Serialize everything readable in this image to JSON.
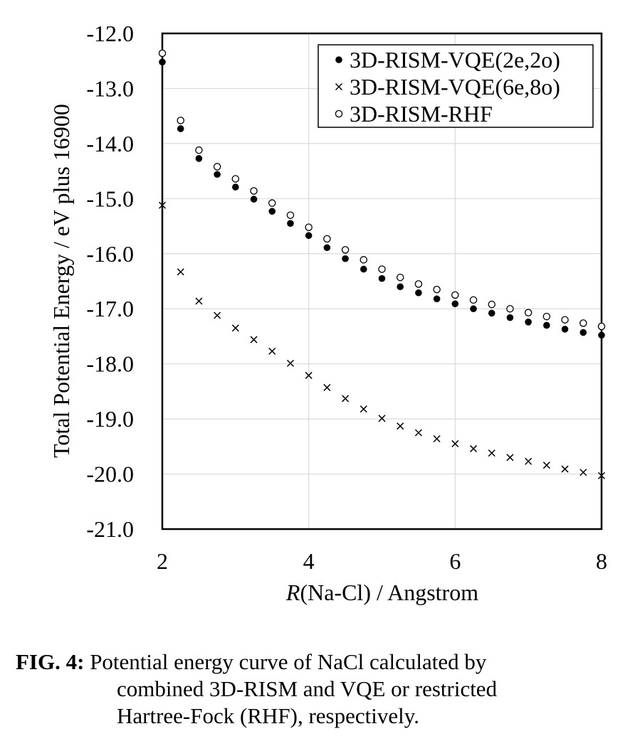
{
  "chart_data": {
    "type": "scatter",
    "xlabel_italic": "R",
    "xlabel_rest": "(Na-Cl) / Angstrom",
    "ylabel": "Total Potential Energy / eV plus 16900",
    "xlim": [
      2,
      8
    ],
    "ylim": [
      -21.0,
      -12.0
    ],
    "xticks": [
      2,
      4,
      6,
      8
    ],
    "xtick_labels": [
      "2",
      "4",
      "6",
      "8"
    ],
    "yticks": [
      -12.0,
      -13.0,
      -14.0,
      -15.0,
      -16.0,
      -17.0,
      -18.0,
      -19.0,
      -20.0,
      -21.0
    ],
    "ytick_labels": [
      "-12.0",
      "-13.0",
      "-14.0",
      "-15.0",
      "-16.0",
      "-17.0",
      "-18.0",
      "-19.0",
      "-20.0",
      "-21.0"
    ],
    "grid": true,
    "legend_position": "top-right",
    "x": [
      2.0,
      2.25,
      2.5,
      2.75,
      3.0,
      3.25,
      3.5,
      3.75,
      4.0,
      4.25,
      4.5,
      4.75,
      5.0,
      5.25,
      5.5,
      5.75,
      6.0,
      6.25,
      6.5,
      6.75,
      7.0,
      7.25,
      7.5,
      7.75,
      8.0
    ],
    "series": [
      {
        "name": "3D-RISM-VQE(2e,2o)",
        "marker": "filled-circle",
        "values": [
          -12.52,
          -13.73,
          -14.27,
          -14.56,
          -14.79,
          -15.01,
          -15.23,
          -15.45,
          -15.67,
          -15.89,
          -16.09,
          -16.28,
          -16.45,
          -16.6,
          -16.71,
          -16.82,
          -16.91,
          -17.0,
          -17.08,
          -17.16,
          -17.24,
          -17.3,
          -17.37,
          -17.43,
          -17.48
        ]
      },
      {
        "name": "3D-RISM-VQE(6e,8o)",
        "marker": "cross",
        "values": [
          -15.12,
          -16.33,
          -16.86,
          -17.12,
          -17.35,
          -17.56,
          -17.77,
          -17.99,
          -18.21,
          -18.43,
          -18.63,
          -18.82,
          -18.99,
          -19.13,
          -19.25,
          -19.36,
          -19.45,
          -19.54,
          -19.62,
          -19.7,
          -19.77,
          -19.84,
          -19.91,
          -19.97,
          -20.03
        ]
      },
      {
        "name": "3D-RISM-RHF",
        "marker": "open-circle",
        "values": [
          -12.36,
          -13.58,
          -14.12,
          -14.42,
          -14.64,
          -14.86,
          -15.08,
          -15.3,
          -15.52,
          -15.73,
          -15.93,
          -16.11,
          -16.28,
          -16.43,
          -16.55,
          -16.65,
          -16.75,
          -16.84,
          -16.92,
          -17.0,
          -17.07,
          -17.14,
          -17.2,
          -17.26,
          -17.32
        ]
      }
    ]
  },
  "caption": {
    "label": "FIG. 4:",
    "line1": "Potential energy curve of NaCl calculated by",
    "line2": "combined 3D-RISM and VQE or restricted",
    "line3": "Hartree-Fock (RHF), respectively."
  }
}
